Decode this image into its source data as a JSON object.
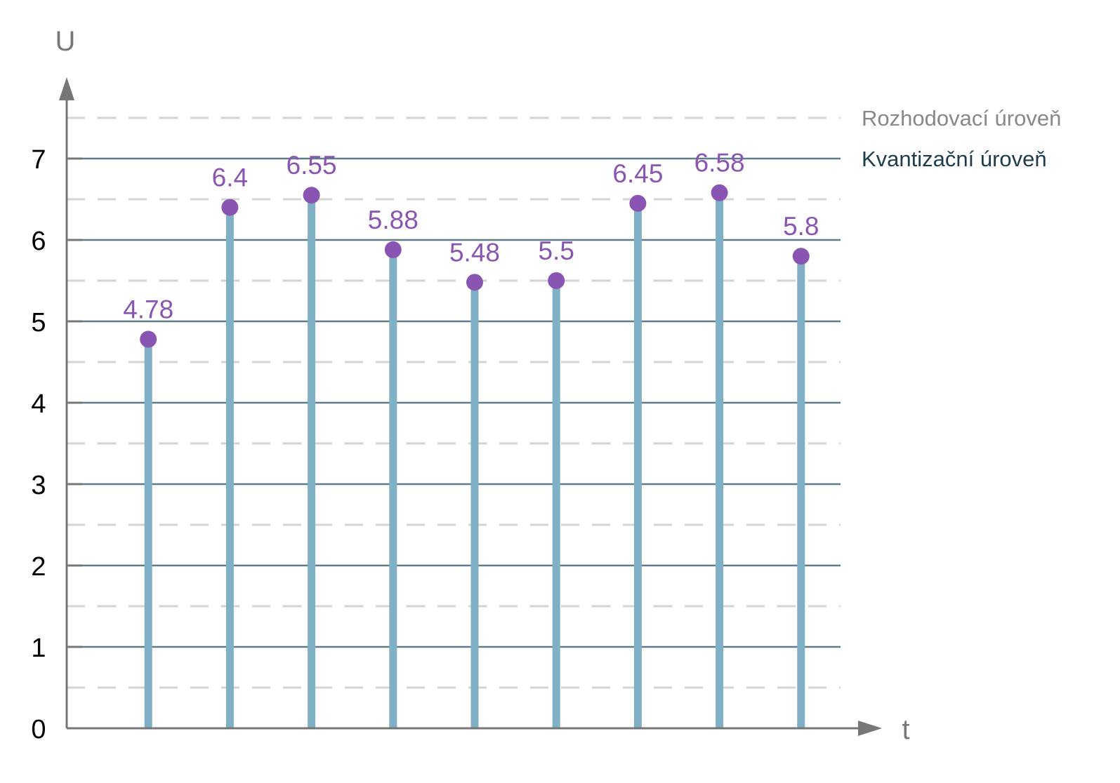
{
  "chart_data": {
    "type": "stem",
    "ylabel": "U",
    "xlabel": "t",
    "ylim": [
      0,
      7.5
    ],
    "y_ticks": [
      "0",
      "1",
      "2",
      "3",
      "4",
      "5",
      "6",
      "7"
    ],
    "quantization_levels": [
      1,
      2,
      3,
      4,
      5,
      6,
      7
    ],
    "decision_levels": [
      0.5,
      1.5,
      2.5,
      3.5,
      4.5,
      5.5,
      6.5,
      7.5
    ],
    "x": [
      1,
      2,
      3,
      4,
      5,
      6,
      7,
      8,
      9
    ],
    "values": [
      4.78,
      6.4,
      6.55,
      5.88,
      5.48,
      5.5,
      6.45,
      6.58,
      5.8
    ],
    "value_labels": [
      "4.78",
      "6.4",
      "6.55",
      "5.88",
      "5.48",
      "5.5",
      "6.45",
      "6.58",
      "5.8"
    ],
    "legend": {
      "placement": "right",
      "decision_label": "Rozhodovací úroveň",
      "quantization_label": "Kvantizační úroveň"
    },
    "colors": {
      "stem": "#7fb0c5",
      "marker": "#8a55b2",
      "value_label": "#8a55b2",
      "quantization_line": "#5f7d88",
      "decision_line": "#d4d4d4",
      "axis": "#777777",
      "decision_legend_text": "#888888",
      "quantization_legend_text": "#1e3d4c"
    }
  }
}
